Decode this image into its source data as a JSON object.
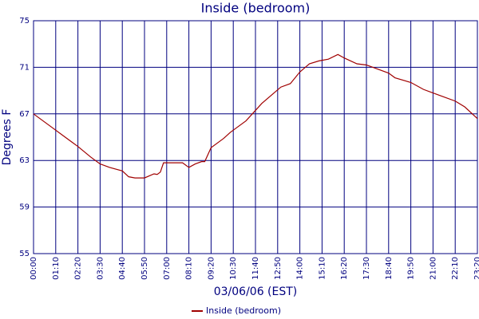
{
  "chart_data": {
    "type": "line",
    "title": "Inside (bedroom)",
    "x_label": "03/06/06 (EST)",
    "y_label": "Degrees F",
    "x": [
      0,
      30,
      60,
      90,
      120,
      140,
      180,
      210,
      240,
      280,
      300,
      320,
      350,
      380,
      390,
      400,
      410,
      420,
      440,
      470,
      490,
      510,
      530,
      540,
      560,
      580,
      600,
      620,
      640,
      670,
      700,
      720,
      750,
      780,
      810,
      840,
      870,
      900,
      910,
      930,
      960,
      980,
      1020,
      1050,
      1080,
      1120,
      1140,
      1190,
      1230,
      1260,
      1290,
      1330,
      1360,
      1400
    ],
    "series": [
      {
        "name": "Inside (bedroom)",
        "color": "#a00000",
        "values": [
          67.0,
          66.4,
          65.8,
          65.2,
          64.6,
          64.2,
          63.3,
          62.7,
          62.4,
          62.1,
          61.6,
          61.5,
          61.5,
          61.85,
          61.8,
          62.0,
          62.8,
          62.8,
          62.8,
          62.8,
          62.4,
          62.7,
          62.9,
          62.9,
          64.1,
          64.5,
          64.9,
          65.4,
          65.8,
          66.4,
          67.3,
          67.9,
          68.6,
          69.3,
          69.6,
          70.6,
          71.3,
          71.55,
          71.6,
          71.7,
          72.1,
          71.8,
          71.3,
          71.2,
          70.9,
          70.5,
          70.1,
          69.7,
          69.1,
          68.8,
          68.5,
          68.1,
          67.6,
          66.6
        ]
      }
    ],
    "xlim": [
      0,
      1400
    ],
    "xticks": [
      {
        "value": 0,
        "label": "00:00"
      },
      {
        "value": 70,
        "label": "01:10"
      },
      {
        "value": 140,
        "label": "02:20"
      },
      {
        "value": 210,
        "label": "03:30"
      },
      {
        "value": 280,
        "label": "04:40"
      },
      {
        "value": 350,
        "label": "05:50"
      },
      {
        "value": 420,
        "label": "07:00"
      },
      {
        "value": 490,
        "label": "08:10"
      },
      {
        "value": 560,
        "label": "09:20"
      },
      {
        "value": 630,
        "label": "10:30"
      },
      {
        "value": 700,
        "label": "11:40"
      },
      {
        "value": 770,
        "label": "12:50"
      },
      {
        "value": 840,
        "label": "14:00"
      },
      {
        "value": 910,
        "label": "15:10"
      },
      {
        "value": 980,
        "label": "16:20"
      },
      {
        "value": 1050,
        "label": "17:30"
      },
      {
        "value": 1120,
        "label": "18:40"
      },
      {
        "value": 1190,
        "label": "19:50"
      },
      {
        "value": 1260,
        "label": "21:00"
      },
      {
        "value": 1330,
        "label": "22:10"
      },
      {
        "value": 1400,
        "label": "23:20"
      }
    ],
    "ylim": [
      55,
      75
    ],
    "yticks": [
      55,
      59,
      63,
      67,
      71,
      75
    ],
    "grid": true,
    "legend": "bottom"
  }
}
